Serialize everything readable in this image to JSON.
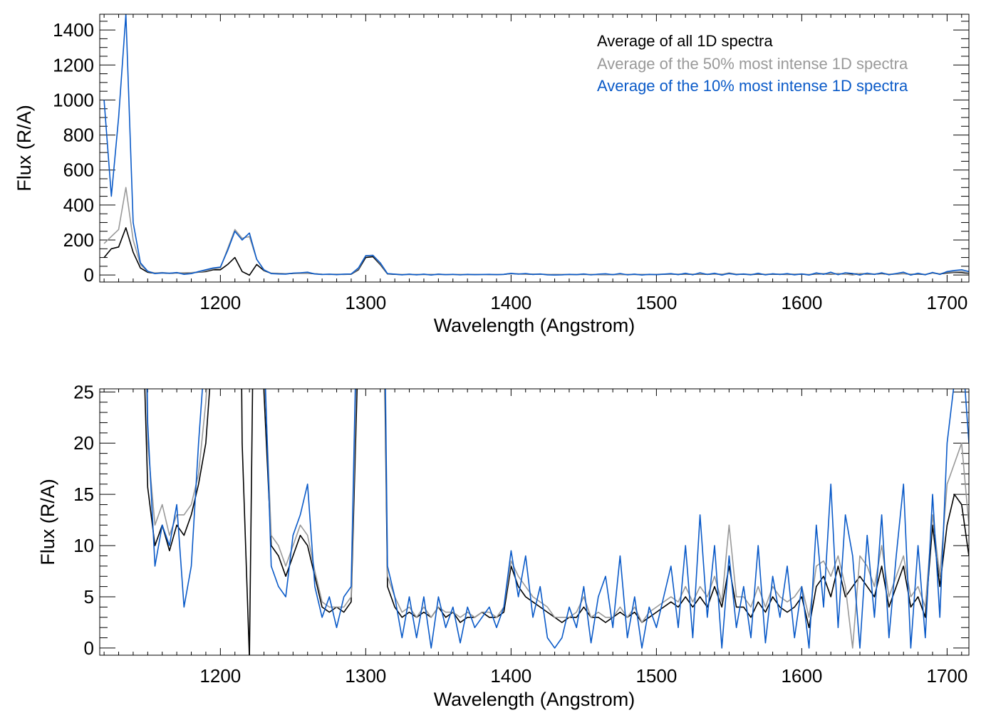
{
  "chart_data": [
    {
      "type": "line",
      "xlabel": "Wavelength (Angstrom)",
      "ylabel": "Flux (R/A)",
      "xlim": [
        1117,
        1715
      ],
      "ylim": [
        -40,
        1490
      ],
      "xticks": [
        1200,
        1300,
        1400,
        1500,
        1600,
        1700
      ],
      "yticks": [
        0,
        200,
        400,
        600,
        800,
        1000,
        1200,
        1400
      ],
      "x_minor_step": 10,
      "y_minor_step": 50,
      "legend_position": "top-right",
      "legend": [
        {
          "label": "Average of all 1D spectra",
          "color": "#000000"
        },
        {
          "label": "Average of the 50% most intense 1D spectra",
          "color": "#999999"
        },
        {
          "label": "Average of the 10% most intense 1D spectra",
          "color": "#0a5ac8"
        }
      ]
    },
    {
      "type": "line",
      "xlabel": "Wavelength (Angstrom)",
      "ylabel": "Flux (R/A)",
      "xlim": [
        1117,
        1715
      ],
      "ylim": [
        -0.7,
        25.3
      ],
      "xticks": [
        1200,
        1300,
        1400,
        1500,
        1600,
        1700
      ],
      "yticks": [
        0,
        5,
        10,
        15,
        20,
        25
      ],
      "x_minor_step": 10,
      "y_minor_step": 1
    }
  ],
  "spectra": {
    "x_start": 1120,
    "x_step": 5,
    "series": [
      {
        "name": "Average of all 1D spectra",
        "color": "#000000",
        "values": [
          100,
          150,
          160,
          270,
          130,
          40,
          15.7,
          10,
          12,
          9.5,
          12,
          11,
          13,
          16,
          20,
          30,
          30,
          60,
          100,
          20,
          -1,
          60,
          25,
          10,
          9,
          7,
          9,
          11,
          10,
          7,
          4,
          3.5,
          4,
          3.5,
          4.5,
          30,
          100,
          105,
          60,
          6,
          4,
          3,
          3.5,
          3,
          3.5,
          3,
          4,
          3,
          3.5,
          2.5,
          3,
          3,
          3.5,
          3,
          3,
          3.5,
          8,
          6,
          5,
          4.5,
          4,
          3.5,
          3,
          2.5,
          3,
          3,
          4,
          3,
          3,
          2.5,
          3,
          3.5,
          3,
          3.5,
          2.5,
          3,
          3.5,
          4,
          4.5,
          4,
          5,
          4,
          5,
          4,
          6,
          4,
          8,
          4,
          4,
          3,
          4.5,
          3.5,
          5,
          4,
          3.5,
          4,
          5,
          2,
          6,
          7,
          5,
          8,
          5,
          6,
          7,
          6,
          5,
          8,
          4,
          6,
          8,
          4,
          5,
          3,
          12,
          6,
          12,
          15,
          14,
          9
        ]
      },
      {
        "name": "Average of the 50% most intense 1D spectra",
        "color": "#999999",
        "values": [
          180,
          220,
          260,
          500,
          200,
          60,
          20,
          12,
          14,
          11,
          13,
          13,
          14,
          17,
          24,
          35,
          40,
          150,
          260,
          210,
          220,
          90,
          28,
          11,
          10,
          8,
          10,
          12,
          11,
          7.5,
          4.5,
          4,
          4,
          4,
          5,
          35,
          110,
          112,
          65,
          7,
          5,
          3.5,
          4,
          3,
          4,
          3,
          4,
          3.5,
          3.5,
          3,
          3.5,
          3,
          3.5,
          3.5,
          3,
          4,
          8.5,
          7,
          6,
          5,
          4.5,
          4,
          3,
          3,
          3,
          3.5,
          5,
          3,
          3.5,
          3,
          3,
          4,
          3,
          4,
          2.5,
          3.5,
          4,
          4.5,
          5,
          4.5,
          6,
          4.5,
          6,
          5,
          7,
          4.5,
          12,
          5,
          5,
          4,
          6,
          4,
          6,
          5,
          4.5,
          5,
          6,
          3,
          8,
          8.5,
          7,
          9,
          6,
          0,
          9,
          8,
          6,
          10,
          5,
          7,
          9,
          5,
          6,
          4,
          13,
          7,
          16,
          18,
          20,
          12
        ]
      },
      {
        "name": "Average of the 10% most intense 1D spectra",
        "color": "#0a5ac8",
        "values": [
          1000,
          450,
          900,
          1490,
          300,
          70,
          22,
          8,
          12,
          10,
          14,
          4,
          8,
          20,
          30,
          40,
          45,
          140,
          250,
          200,
          240,
          90,
          30,
          8,
          6,
          5,
          11,
          13,
          16,
          6,
          3,
          5,
          2,
          5,
          6,
          40,
          110,
          112,
          70,
          8,
          5,
          1,
          5,
          1,
          5,
          0,
          5,
          2,
          4,
          0.5,
          4,
          2,
          3,
          4,
          2,
          4,
          9.5,
          5,
          9,
          3,
          6,
          1,
          0,
          1,
          4,
          2,
          6,
          0.5,
          5,
          7,
          2,
          9,
          1,
          5,
          0,
          4,
          2,
          5,
          8,
          2,
          10,
          1,
          13,
          3,
          10,
          0,
          9,
          2,
          6,
          1,
          10,
          0.5,
          7,
          3,
          8,
          1,
          6,
          0,
          12,
          4,
          16,
          2,
          13,
          9,
          0,
          11,
          3,
          13,
          1,
          9,
          16,
          0,
          10,
          1,
          15,
          3,
          20,
          26,
          30,
          20
        ]
      }
    ]
  }
}
